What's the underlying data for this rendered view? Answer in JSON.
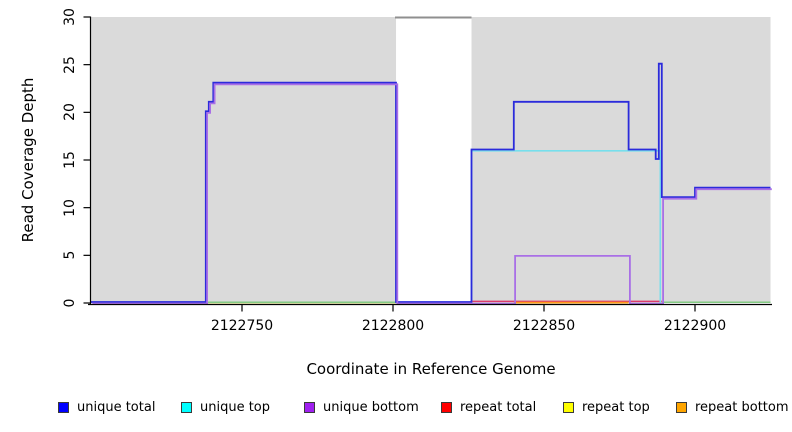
{
  "chart_data": {
    "type": "line",
    "subtype": "step-coverage",
    "xlabel": "Coordinate in Reference Genome",
    "ylabel": "Read Coverage Depth",
    "xlim": [
      2122700,
      2122925
    ],
    "ylim": [
      0,
      30
    ],
    "grid": false,
    "legend_position": "bottom",
    "x_ticks": {
      "values": [
        2122750,
        2122800,
        2122850,
        2122900
      ],
      "labels": [
        "2122750",
        "2122800",
        "2122850",
        "2122900"
      ]
    },
    "y_ticks": {
      "values": [
        0,
        5,
        10,
        15,
        20,
        25,
        30
      ],
      "labels": [
        "0",
        "5",
        "10",
        "15",
        "20",
        "25",
        "30"
      ]
    },
    "background_shaded_regions": {
      "color": "#DADADA",
      "x_ranges": [
        [
          2122700,
          2122801
        ],
        [
          2122826,
          2122925
        ]
      ]
    },
    "clipped_top_segment": {
      "color": "#8F8F8F",
      "x_range": [
        2122801,
        2122826
      ],
      "value": 30
    },
    "baseline_overlap_segments": {
      "color": "#83CB83",
      "value": 0,
      "x_ranges": [
        [
          2122738,
          2122801
        ],
        [
          2122889,
          2122925
        ]
      ]
    },
    "series": [
      {
        "name": "repeat top",
        "color": "#EDEDB0",
        "points": [
          [
            2122738,
            0
          ],
          [
            2122801,
            0
          ]
        ]
      },
      {
        "name": "repeat total",
        "color": "#DB3B6B",
        "points": [
          [
            2122826,
            0
          ],
          [
            2122889,
            0
          ]
        ]
      },
      {
        "name": "repeat bottom",
        "color": "#FF9C1A",
        "points": [
          [
            2122840,
            0
          ],
          [
            2122878,
            0
          ]
        ]
      },
      {
        "name": "unique top",
        "color": "#77DFEC",
        "points": [
          [
            2122826,
            0
          ],
          [
            2122826,
            16
          ],
          [
            2122888.5,
            16
          ],
          [
            2122888.5,
            0
          ]
        ]
      },
      {
        "name": "unique total",
        "color": "#2B2BDB",
        "points": [
          [
            2122700,
            0
          ],
          [
            2122738,
            0
          ],
          [
            2122738,
            20
          ],
          [
            2122739,
            20
          ],
          [
            2122739,
            21
          ],
          [
            2122740.5,
            21
          ],
          [
            2122740.5,
            23
          ],
          [
            2122801,
            23
          ],
          [
            2122801,
            0
          ],
          [
            2122826,
            0
          ],
          [
            2122826,
            16
          ],
          [
            2122840,
            16
          ],
          [
            2122840,
            21
          ],
          [
            2122878,
            21
          ],
          [
            2122878,
            16
          ],
          [
            2122887,
            16
          ],
          [
            2122887,
            15
          ],
          [
            2122888,
            15
          ],
          [
            2122888,
            25
          ],
          [
            2122889,
            25
          ],
          [
            2122889,
            11
          ],
          [
            2122900,
            11
          ],
          [
            2122900,
            12
          ],
          [
            2122925,
            12
          ]
        ]
      },
      {
        "name": "unique bottom",
        "color": "#A96FE6",
        "points": [
          [
            2122700,
            0
          ],
          [
            2122738,
            0
          ],
          [
            2122738,
            20
          ],
          [
            2122739,
            20
          ],
          [
            2122739,
            21
          ],
          [
            2122740.5,
            21
          ],
          [
            2122740.5,
            23
          ],
          [
            2122801,
            23
          ],
          [
            2122801,
            0
          ],
          [
            2122840,
            0
          ],
          [
            2122840,
            5
          ],
          [
            2122878,
            5
          ],
          [
            2122878,
            0
          ],
          [
            2122889,
            0
          ],
          [
            2122889,
            11
          ],
          [
            2122900,
            11
          ],
          [
            2122900,
            12
          ],
          [
            2122925,
            12
          ]
        ]
      }
    ]
  },
  "legend": {
    "items": [
      {
        "label": "unique total",
        "color": "#0000FF"
      },
      {
        "label": "unique top",
        "color": "#00FFFF"
      },
      {
        "label": "unique bottom",
        "color": "#A020F0"
      },
      {
        "label": "repeat total",
        "color": "#FF0000"
      },
      {
        "label": "repeat top",
        "color": "#FFFF00"
      },
      {
        "label": "repeat bottom",
        "color": "#FFA500"
      }
    ]
  }
}
